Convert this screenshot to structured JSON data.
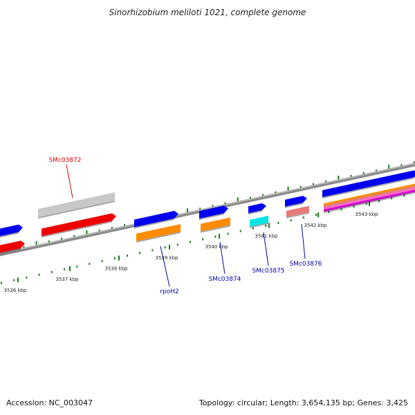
{
  "title": "Sinorhizobium meliloti 1021, complete genome",
  "footer": {
    "accession": "Accession: NC_003047",
    "stats": "Topology: circular; Length: 3,654,135 bp; Genes: 3,425"
  },
  "ruler": {
    "tick_color": "#1a7a1a",
    "ticks": [
      "3536 kbp",
      "3537 kbp",
      "3538 kbp",
      "3539 kbp",
      "3540 kbp",
      "3541 kbp",
      "3542 kbp",
      "3543 kbp"
    ]
  },
  "colors": {
    "backbone": "#8a8a8a",
    "gene": "#0000ee",
    "cds_red": "#ee0000",
    "cds_orange": "#ff8c00",
    "cds_cyan": "#00e5e5",
    "cds_pink": "#e87a7a",
    "pseudo": "#c8c8c8",
    "label_red": "#dd0000",
    "label_blue": "#0000aa"
  },
  "features": {
    "SMc03872": "SMc03872",
    "rpoH2": "rpoH2",
    "SMc03874": "SMc03874",
    "SMc03875": "SMc03875",
    "SMc03876": "SMc03876"
  }
}
